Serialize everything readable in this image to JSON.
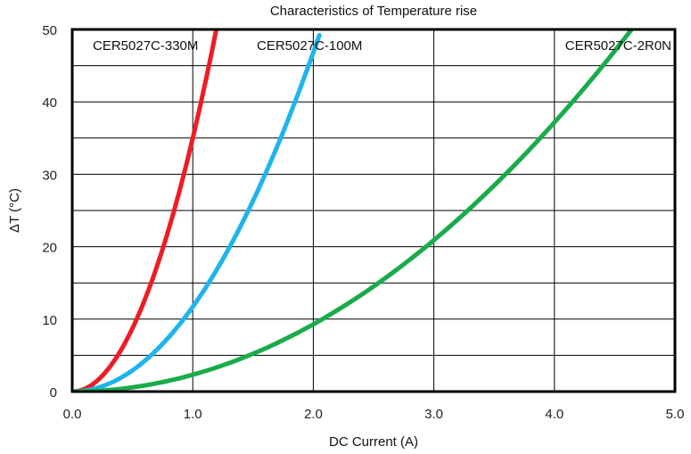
{
  "chart_data": {
    "type": "line",
    "title": "Characteristics of Temperature rise",
    "xlabel": "DC Current (A)",
    "ylabel": "ΔT (°C)",
    "xlim": [
      0,
      5
    ],
    "ylim": [
      0,
      50
    ],
    "x_ticks": [
      "0.0",
      "1.0",
      "2.0",
      "3.0",
      "4.0",
      "5.0"
    ],
    "y_ticks": [
      "0",
      "10",
      "20",
      "30",
      "40",
      "50"
    ],
    "grid": true,
    "series": [
      {
        "name": "CER5027C-330M",
        "color": "#ee1c24",
        "points": [
          [
            0,
            0
          ],
          [
            0.2,
            1.4
          ],
          [
            0.4,
            5.6
          ],
          [
            0.6,
            12.6
          ],
          [
            0.8,
            22.4
          ],
          [
            1.0,
            35.0
          ],
          [
            1.2,
            50.4
          ]
        ]
      },
      {
        "name": "CER5027C-100M",
        "color": "#1eb4ec",
        "points": [
          [
            0,
            0
          ],
          [
            0.5,
            2.9
          ],
          [
            1.0,
            11.7
          ],
          [
            1.5,
            26.3
          ],
          [
            2.0,
            46.8
          ],
          [
            2.05,
            49.2
          ]
        ]
      },
      {
        "name": "CER5027C-2R0N",
        "color": "#1aab4b",
        "points": [
          [
            0,
            0
          ],
          [
            1.0,
            2.3
          ],
          [
            2.0,
            9.3
          ],
          [
            3.0,
            20.9
          ],
          [
            4.0,
            37.2
          ],
          [
            4.7,
            51.3
          ]
        ]
      }
    ]
  }
}
